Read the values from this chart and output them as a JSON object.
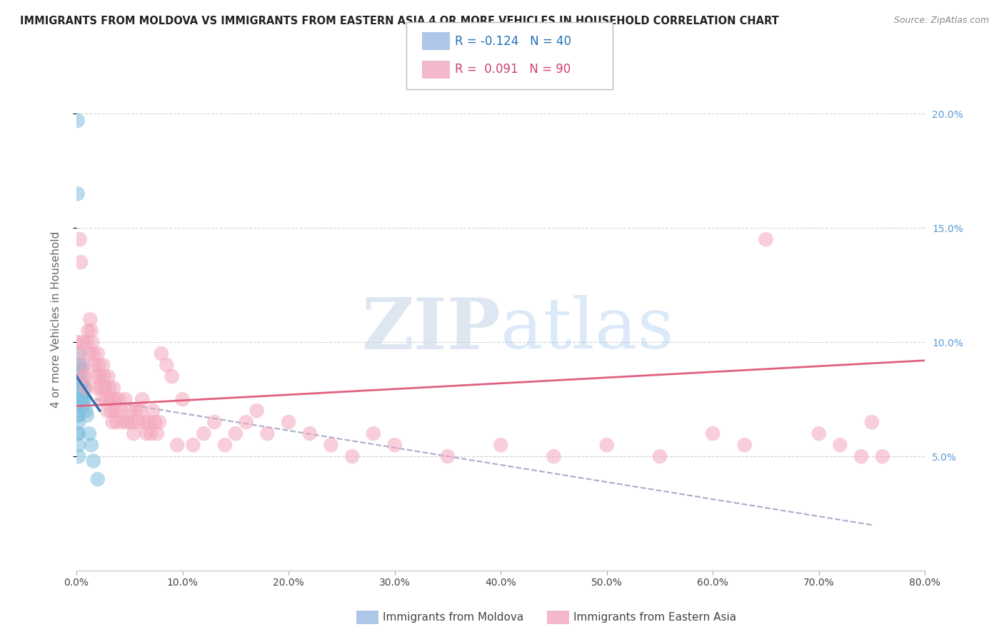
{
  "title": "IMMIGRANTS FROM MOLDOVA VS IMMIGRANTS FROM EASTERN ASIA 4 OR MORE VEHICLES IN HOUSEHOLD CORRELATION CHART",
  "source": "Source: ZipAtlas.com",
  "ylabel": "4 or more Vehicles in Household",
  "legend_label_blue": "Immigrants from Moldova",
  "legend_label_pink": "Immigrants from Eastern Asia",
  "r_blue": "-0.124",
  "n_blue": "40",
  "r_pink": "0.091",
  "n_pink": "90",
  "blue_color": "#7fbfdf",
  "pink_color": "#f4a7bc",
  "blue_line_color": "#3070b0",
  "pink_line_color": "#e06080",
  "dash_color": "#aaaacc",
  "watermark_zip": "ZIP",
  "watermark_atlas": "atlas",
  "xlim": [
    0.0,
    0.8
  ],
  "ylim": [
    0.0,
    0.22
  ],
  "xticks": [
    0.0,
    0.1,
    0.2,
    0.3,
    0.4,
    0.5,
    0.6,
    0.7,
    0.8
  ],
  "xticklabels": [
    "0.0%",
    "10.0%",
    "20.0%",
    "30.0%",
    "40.0%",
    "50.0%",
    "60.0%",
    "70.0%",
    "80.0%"
  ],
  "yticks": [
    0.05,
    0.1,
    0.15,
    0.2
  ],
  "yticklabels_right": [
    "5.0%",
    "10.0%",
    "15.0%",
    "20.0%"
  ],
  "background_color": "#ffffff",
  "grid_color": "#cccccc",
  "blue_x": [
    0.001,
    0.001,
    0.001,
    0.001,
    0.001,
    0.001,
    0.001,
    0.002,
    0.002,
    0.002,
    0.002,
    0.002,
    0.002,
    0.002,
    0.002,
    0.002,
    0.002,
    0.002,
    0.003,
    0.003,
    0.003,
    0.003,
    0.003,
    0.004,
    0.004,
    0.004,
    0.005,
    0.005,
    0.005,
    0.006,
    0.006,
    0.007,
    0.007,
    0.008,
    0.009,
    0.01,
    0.012,
    0.014,
    0.016,
    0.02
  ],
  "blue_y": [
    0.197,
    0.165,
    0.088,
    0.082,
    0.075,
    0.068,
    0.06,
    0.088,
    0.085,
    0.082,
    0.078,
    0.075,
    0.072,
    0.068,
    0.065,
    0.06,
    0.055,
    0.05,
    0.095,
    0.09,
    0.085,
    0.08,
    0.075,
    0.09,
    0.082,
    0.075,
    0.088,
    0.082,
    0.075,
    0.082,
    0.075,
    0.08,
    0.072,
    0.075,
    0.07,
    0.068,
    0.06,
    0.055,
    0.048,
    0.04
  ],
  "blue_line_x0": 0.0,
  "blue_line_x1": 0.022,
  "blue_line_y0": 0.085,
  "blue_line_y1": 0.07,
  "pink_line_x0": 0.0,
  "pink_line_x1": 0.8,
  "pink_line_y0": 0.072,
  "pink_line_y1": 0.092,
  "dash_line_x0": 0.018,
  "dash_line_x1": 0.75,
  "dash_line_y0": 0.075,
  "dash_line_y1": 0.02,
  "pink_x": [
    0.001,
    0.002,
    0.003,
    0.004,
    0.005,
    0.006,
    0.007,
    0.008,
    0.009,
    0.01,
    0.011,
    0.012,
    0.013,
    0.014,
    0.015,
    0.016,
    0.017,
    0.018,
    0.019,
    0.02,
    0.021,
    0.022,
    0.023,
    0.024,
    0.025,
    0.026,
    0.027,
    0.028,
    0.029,
    0.03,
    0.031,
    0.032,
    0.033,
    0.034,
    0.035,
    0.036,
    0.037,
    0.038,
    0.04,
    0.042,
    0.044,
    0.046,
    0.048,
    0.05,
    0.052,
    0.054,
    0.056,
    0.058,
    0.06,
    0.062,
    0.064,
    0.066,
    0.068,
    0.07,
    0.072,
    0.074,
    0.076,
    0.078,
    0.08,
    0.085,
    0.09,
    0.095,
    0.1,
    0.11,
    0.12,
    0.13,
    0.14,
    0.15,
    0.16,
    0.17,
    0.18,
    0.2,
    0.22,
    0.24,
    0.26,
    0.28,
    0.3,
    0.35,
    0.4,
    0.45,
    0.5,
    0.55,
    0.6,
    0.63,
    0.65,
    0.7,
    0.72,
    0.74,
    0.75,
    0.76
  ],
  "pink_y": [
    0.1,
    0.095,
    0.145,
    0.135,
    0.085,
    0.1,
    0.09,
    0.085,
    0.08,
    0.1,
    0.105,
    0.095,
    0.11,
    0.105,
    0.1,
    0.095,
    0.09,
    0.085,
    0.08,
    0.095,
    0.09,
    0.085,
    0.08,
    0.075,
    0.09,
    0.085,
    0.08,
    0.075,
    0.07,
    0.085,
    0.08,
    0.075,
    0.07,
    0.065,
    0.08,
    0.075,
    0.07,
    0.065,
    0.075,
    0.07,
    0.065,
    0.075,
    0.065,
    0.07,
    0.065,
    0.06,
    0.07,
    0.065,
    0.07,
    0.075,
    0.065,
    0.06,
    0.065,
    0.06,
    0.07,
    0.065,
    0.06,
    0.065,
    0.095,
    0.09,
    0.085,
    0.055,
    0.075,
    0.055,
    0.06,
    0.065,
    0.055,
    0.06,
    0.065,
    0.07,
    0.06,
    0.065,
    0.06,
    0.055,
    0.05,
    0.06,
    0.055,
    0.05,
    0.055,
    0.05,
    0.055,
    0.05,
    0.06,
    0.055,
    0.145,
    0.06,
    0.055,
    0.05,
    0.065,
    0.05
  ]
}
